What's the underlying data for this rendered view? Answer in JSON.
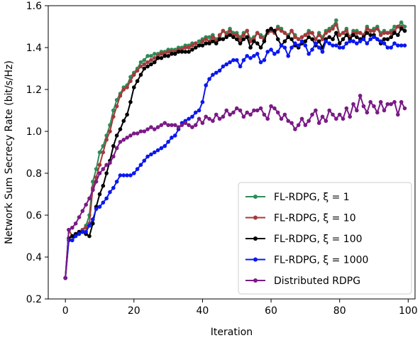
{
  "chart_data": {
    "type": "line",
    "title": "",
    "xlabel": "Iteration",
    "ylabel": "Network Sum Secrecy Rate (bit/s/Hz)",
    "xlim": [
      -5,
      102
    ],
    "ylim": [
      0.2,
      1.6
    ],
    "xticks": [
      0,
      20,
      40,
      60,
      80,
      100
    ],
    "yticks": [
      0.2,
      0.4,
      0.6,
      0.8,
      1.0,
      1.2,
      1.4,
      1.6
    ],
    "xtick_labels": [
      "0",
      "20",
      "40",
      "60",
      "80",
      "100"
    ],
    "ytick_labels": [
      "0.2",
      "0.4",
      "0.6",
      "0.8",
      "1.0",
      "1.2",
      "1.4",
      "1.6"
    ],
    "grid": false,
    "legend_position": "lower-right",
    "legend_entries": [
      "FL-RDPG, ξ = 1",
      "FL-RDPG, ξ = 10",
      "FL-RDPG, ξ = 100",
      "FL-RDPG, ξ = 1000",
      "Distributed RDPG"
    ],
    "series": [
      {
        "name": "FL-RDPG, ξ = 1",
        "color": "#2e8b57",
        "x": [
          0,
          1,
          2,
          3,
          4,
          5,
          6,
          7,
          8,
          9,
          10,
          11,
          12,
          13,
          14,
          15,
          16,
          17,
          18,
          19,
          20,
          21,
          22,
          23,
          24,
          25,
          26,
          27,
          28,
          29,
          30,
          31,
          32,
          33,
          34,
          35,
          36,
          37,
          38,
          39,
          40,
          41,
          42,
          43,
          44,
          45,
          46,
          47,
          48,
          49,
          50,
          51,
          52,
          53,
          54,
          55,
          56,
          57,
          58,
          59,
          60,
          61,
          62,
          63,
          64,
          65,
          66,
          67,
          68,
          69,
          70,
          71,
          72,
          73,
          74,
          75,
          76,
          77,
          78,
          79,
          80,
          81,
          82,
          83,
          84,
          85,
          86,
          87,
          88,
          89,
          90,
          91,
          92,
          93,
          94,
          95,
          96,
          97,
          98,
          99
        ],
        "values": [
          0.3,
          0.53,
          0.5,
          0.51,
          0.52,
          0.53,
          0.55,
          0.6,
          0.76,
          0.82,
          0.9,
          0.93,
          0.98,
          1.03,
          1.1,
          1.15,
          1.18,
          1.21,
          1.22,
          1.26,
          1.28,
          1.3,
          1.33,
          1.34,
          1.36,
          1.36,
          1.37,
          1.37,
          1.38,
          1.38,
          1.39,
          1.39,
          1.39,
          1.4,
          1.4,
          1.41,
          1.41,
          1.42,
          1.42,
          1.43,
          1.44,
          1.45,
          1.45,
          1.46,
          1.44,
          1.45,
          1.48,
          1.47,
          1.49,
          1.47,
          1.47,
          1.45,
          1.47,
          1.48,
          1.44,
          1.45,
          1.47,
          1.46,
          1.45,
          1.48,
          1.49,
          1.48,
          1.5,
          1.49,
          1.47,
          1.46,
          1.48,
          1.46,
          1.44,
          1.45,
          1.46,
          1.48,
          1.47,
          1.44,
          1.47,
          1.45,
          1.48,
          1.49,
          1.5,
          1.53,
          1.46,
          1.47,
          1.49,
          1.45,
          1.48,
          1.48,
          1.47,
          1.46,
          1.5,
          1.48,
          1.49,
          1.5,
          1.47,
          1.48,
          1.47,
          1.48,
          1.5,
          1.5,
          1.52,
          1.5
        ]
      },
      {
        "name": "FL-RDPG, ξ = 10",
        "color": "#a33a3a",
        "x": [
          0,
          1,
          2,
          3,
          4,
          5,
          6,
          7,
          8,
          9,
          10,
          11,
          12,
          13,
          14,
          15,
          16,
          17,
          18,
          19,
          20,
          21,
          22,
          23,
          24,
          25,
          26,
          27,
          28,
          29,
          30,
          31,
          32,
          33,
          34,
          35,
          36,
          37,
          38,
          39,
          40,
          41,
          42,
          43,
          44,
          45,
          46,
          47,
          48,
          49,
          50,
          51,
          52,
          53,
          54,
          55,
          56,
          57,
          58,
          59,
          60,
          61,
          62,
          63,
          64,
          65,
          66,
          67,
          68,
          69,
          70,
          71,
          72,
          73,
          74,
          75,
          76,
          77,
          78,
          79,
          80,
          81,
          82,
          83,
          84,
          85,
          86,
          87,
          88,
          89,
          90,
          91,
          92,
          93,
          94,
          95,
          96,
          97,
          98,
          99
        ],
        "values": [
          0.3,
          0.53,
          0.5,
          0.51,
          0.52,
          0.53,
          0.54,
          0.56,
          0.73,
          0.78,
          0.84,
          0.9,
          0.96,
          1.0,
          1.07,
          1.12,
          1.17,
          1.2,
          1.21,
          1.24,
          1.27,
          1.29,
          1.31,
          1.32,
          1.33,
          1.34,
          1.35,
          1.36,
          1.37,
          1.37,
          1.38,
          1.38,
          1.38,
          1.39,
          1.39,
          1.4,
          1.4,
          1.41,
          1.42,
          1.41,
          1.43,
          1.44,
          1.43,
          1.45,
          1.43,
          1.46,
          1.48,
          1.46,
          1.48,
          1.46,
          1.46,
          1.44,
          1.46,
          1.48,
          1.43,
          1.44,
          1.47,
          1.45,
          1.44,
          1.47,
          1.48,
          1.47,
          1.49,
          1.48,
          1.47,
          1.45,
          1.48,
          1.45,
          1.44,
          1.45,
          1.46,
          1.47,
          1.47,
          1.44,
          1.46,
          1.44,
          1.47,
          1.48,
          1.49,
          1.51,
          1.46,
          1.47,
          1.48,
          1.45,
          1.47,
          1.47,
          1.47,
          1.46,
          1.49,
          1.48,
          1.48,
          1.49,
          1.46,
          1.47,
          1.47,
          1.47,
          1.48,
          1.5,
          1.5,
          1.48
        ]
      },
      {
        "name": "FL-RDPG, ξ = 100",
        "color": "#000000",
        "x": [
          0,
          1,
          2,
          3,
          4,
          5,
          6,
          7,
          8,
          9,
          10,
          11,
          12,
          13,
          14,
          15,
          16,
          17,
          18,
          19,
          20,
          21,
          22,
          23,
          24,
          25,
          26,
          27,
          28,
          29,
          30,
          31,
          32,
          33,
          34,
          35,
          36,
          37,
          38,
          39,
          40,
          41,
          42,
          43,
          44,
          45,
          46,
          47,
          48,
          49,
          50,
          51,
          52,
          53,
          54,
          55,
          56,
          57,
          58,
          59,
          60,
          61,
          62,
          63,
          64,
          65,
          66,
          67,
          68,
          69,
          70,
          71,
          72,
          73,
          74,
          75,
          76,
          77,
          78,
          79,
          80,
          81,
          82,
          83,
          84,
          85,
          86,
          87,
          88,
          89,
          90,
          91,
          92,
          93,
          94,
          95,
          96,
          97,
          98,
          99
        ],
        "values": [
          0.3,
          0.49,
          0.5,
          0.51,
          0.52,
          0.52,
          0.51,
          0.5,
          0.56,
          0.64,
          0.7,
          0.74,
          0.8,
          0.86,
          0.93,
          0.98,
          1.01,
          1.05,
          1.08,
          1.14,
          1.21,
          1.24,
          1.27,
          1.3,
          1.31,
          1.32,
          1.33,
          1.35,
          1.35,
          1.36,
          1.36,
          1.37,
          1.37,
          1.38,
          1.38,
          1.38,
          1.38,
          1.39,
          1.4,
          1.41,
          1.41,
          1.42,
          1.42,
          1.43,
          1.42,
          1.44,
          1.44,
          1.45,
          1.46,
          1.45,
          1.44,
          1.42,
          1.44,
          1.45,
          1.4,
          1.43,
          1.42,
          1.4,
          1.43,
          1.48,
          1.49,
          1.48,
          1.44,
          1.41,
          1.43,
          1.45,
          1.44,
          1.41,
          1.4,
          1.42,
          1.43,
          1.45,
          1.44,
          1.41,
          1.43,
          1.4,
          1.44,
          1.45,
          1.44,
          1.47,
          1.42,
          1.44,
          1.46,
          1.44,
          1.46,
          1.45,
          1.44,
          1.45,
          1.47,
          1.46,
          1.46,
          1.44,
          1.42,
          1.44,
          1.44,
          1.45,
          1.47,
          1.46,
          1.49,
          1.48
        ]
      },
      {
        "name": "FL-RDPG, ξ = 1000",
        "color": "#0a17f0",
        "x": [
          0,
          1,
          2,
          3,
          4,
          5,
          6,
          7,
          8,
          9,
          10,
          11,
          12,
          13,
          14,
          15,
          16,
          17,
          18,
          19,
          20,
          21,
          22,
          23,
          24,
          25,
          26,
          27,
          28,
          29,
          30,
          31,
          32,
          33,
          34,
          35,
          36,
          37,
          38,
          39,
          40,
          41,
          42,
          43,
          44,
          45,
          46,
          47,
          48,
          49,
          50,
          51,
          52,
          53,
          54,
          55,
          56,
          57,
          58,
          59,
          60,
          61,
          62,
          63,
          64,
          65,
          66,
          67,
          68,
          69,
          70,
          71,
          72,
          73,
          74,
          75,
          76,
          77,
          78,
          79,
          80,
          81,
          82,
          83,
          84,
          85,
          86,
          87,
          88,
          89,
          90,
          91,
          92,
          93,
          94,
          95,
          96,
          97,
          98,
          99
        ],
        "values": [
          0.3,
          0.48,
          0.48,
          0.5,
          0.51,
          0.52,
          0.52,
          0.55,
          0.58,
          0.63,
          0.64,
          0.66,
          0.68,
          0.71,
          0.73,
          0.76,
          0.79,
          0.79,
          0.79,
          0.79,
          0.8,
          0.82,
          0.84,
          0.86,
          0.88,
          0.89,
          0.9,
          0.91,
          0.92,
          0.93,
          0.95,
          0.97,
          0.98,
          1.01,
          1.04,
          1.05,
          1.06,
          1.07,
          1.09,
          1.1,
          1.14,
          1.22,
          1.25,
          1.27,
          1.28,
          1.29,
          1.31,
          1.32,
          1.33,
          1.34,
          1.34,
          1.31,
          1.34,
          1.36,
          1.35,
          1.36,
          1.37,
          1.33,
          1.34,
          1.38,
          1.39,
          1.37,
          1.38,
          1.41,
          1.4,
          1.36,
          1.4,
          1.42,
          1.41,
          1.43,
          1.41,
          1.37,
          1.39,
          1.42,
          1.4,
          1.38,
          1.43,
          1.42,
          1.41,
          1.41,
          1.4,
          1.4,
          1.42,
          1.43,
          1.43,
          1.42,
          1.43,
          1.44,
          1.42,
          1.44,
          1.45,
          1.44,
          1.43,
          1.42,
          1.4,
          1.4,
          1.42,
          1.41,
          1.41,
          1.41
        ]
      },
      {
        "name": "Distributed RDPG",
        "color": "#7a1a86",
        "x": [
          0,
          1,
          2,
          3,
          4,
          5,
          6,
          7,
          8,
          9,
          10,
          11,
          12,
          13,
          14,
          15,
          16,
          17,
          18,
          19,
          20,
          21,
          22,
          23,
          24,
          25,
          26,
          27,
          28,
          29,
          30,
          31,
          32,
          33,
          34,
          35,
          36,
          37,
          38,
          39,
          40,
          41,
          42,
          43,
          44,
          45,
          46,
          47,
          48,
          49,
          50,
          51,
          52,
          53,
          54,
          55,
          56,
          57,
          58,
          59,
          60,
          61,
          62,
          63,
          64,
          65,
          66,
          67,
          68,
          69,
          70,
          71,
          72,
          73,
          74,
          75,
          76,
          77,
          78,
          79,
          80,
          81,
          82,
          83,
          84,
          85,
          86,
          87,
          88,
          89,
          90,
          91,
          92,
          93,
          94,
          95,
          96,
          97,
          98,
          99
        ],
        "values": [
          0.3,
          0.53,
          0.54,
          0.56,
          0.59,
          0.62,
          0.65,
          0.68,
          0.72,
          0.76,
          0.8,
          0.82,
          0.84,
          0.85,
          0.88,
          0.92,
          0.95,
          0.96,
          0.97,
          0.98,
          0.99,
          0.99,
          1.0,
          1.0,
          1.01,
          1.02,
          1.01,
          1.02,
          1.03,
          1.04,
          1.03,
          1.03,
          1.03,
          1.02,
          1.03,
          1.04,
          1.03,
          1.02,
          1.03,
          1.06,
          1.04,
          1.07,
          1.06,
          1.05,
          1.08,
          1.06,
          1.07,
          1.1,
          1.08,
          1.09,
          1.11,
          1.1,
          1.07,
          1.09,
          1.08,
          1.1,
          1.1,
          1.11,
          1.08,
          1.06,
          1.12,
          1.11,
          1.09,
          1.06,
          1.08,
          1.05,
          1.04,
          1.01,
          1.03,
          1.06,
          1.03,
          1.05,
          1.08,
          1.1,
          1.04,
          1.07,
          1.05,
          1.1,
          1.08,
          1.06,
          1.08,
          1.06,
          1.11,
          1.07,
          1.13,
          1.1,
          1.17,
          1.12,
          1.09,
          1.14,
          1.12,
          1.09,
          1.14,
          1.1,
          1.13,
          1.13,
          1.14,
          1.08,
          1.14,
          1.11
        ]
      }
    ]
  }
}
